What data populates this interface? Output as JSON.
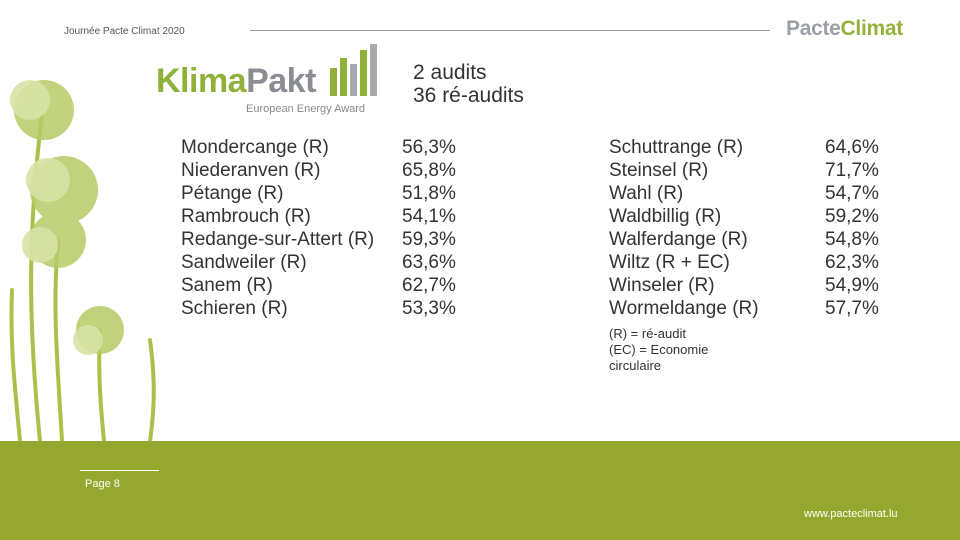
{
  "header": {
    "event_label": "Journée Pacte Climat 2020",
    "brand_word1": "Pacte",
    "brand_word2": "Climat"
  },
  "logo": {
    "word1": "Klima",
    "word2": "Pakt",
    "subtitle": "European Energy Award",
    "icon": "bar-chart-logo-icon"
  },
  "summary": {
    "audits": "2 audits",
    "reaudits": "36 ré-audits"
  },
  "left_column": [
    {
      "name": "Mondercange (R)",
      "value": "56,3%"
    },
    {
      "name": "Niederanven (R)",
      "value": "65,8%"
    },
    {
      "name": "Pétange (R)",
      "value": "51,8%"
    },
    {
      "name": "Rambrouch (R)",
      "value": "54,1%"
    },
    {
      "name": "Redange-sur-Attert (R)",
      "value": "59,3%"
    },
    {
      "name": "Sandweiler (R)",
      "value": "63,6%"
    },
    {
      "name": "Sanem (R)",
      "value": "62,7%"
    },
    {
      "name": "Schieren (R)",
      "value": "53,3%"
    }
  ],
  "right_column": [
    {
      "name": "Schuttrange (R)",
      "value": "64,6%"
    },
    {
      "name": "Steinsel (R)",
      "value": "71,7%"
    },
    {
      "name": "Wahl (R)",
      "value": "54,7%"
    },
    {
      "name": "Waldbillig (R)",
      "value": "59,2%"
    },
    {
      "name": "Walferdange (R)",
      "value": "54,8%"
    },
    {
      "name": "Wiltz (R + EC)",
      "value": "62,3%"
    },
    {
      "name": "Winseler (R)",
      "value": "54,9%"
    },
    {
      "name": "Wormeldange (R)",
      "value": "57,7%"
    }
  ],
  "legend": {
    "line1": "(R) = ré-audit",
    "line2": "(EC) = Economie",
    "line3": "circulaire"
  },
  "footer": {
    "page_label": "Page 8",
    "website": "www.pacteclimat.lu"
  },
  "colors": {
    "footer_green": "#95a82d",
    "brand_green": "#95b23c",
    "brand_grey": "#9aa0a6"
  }
}
